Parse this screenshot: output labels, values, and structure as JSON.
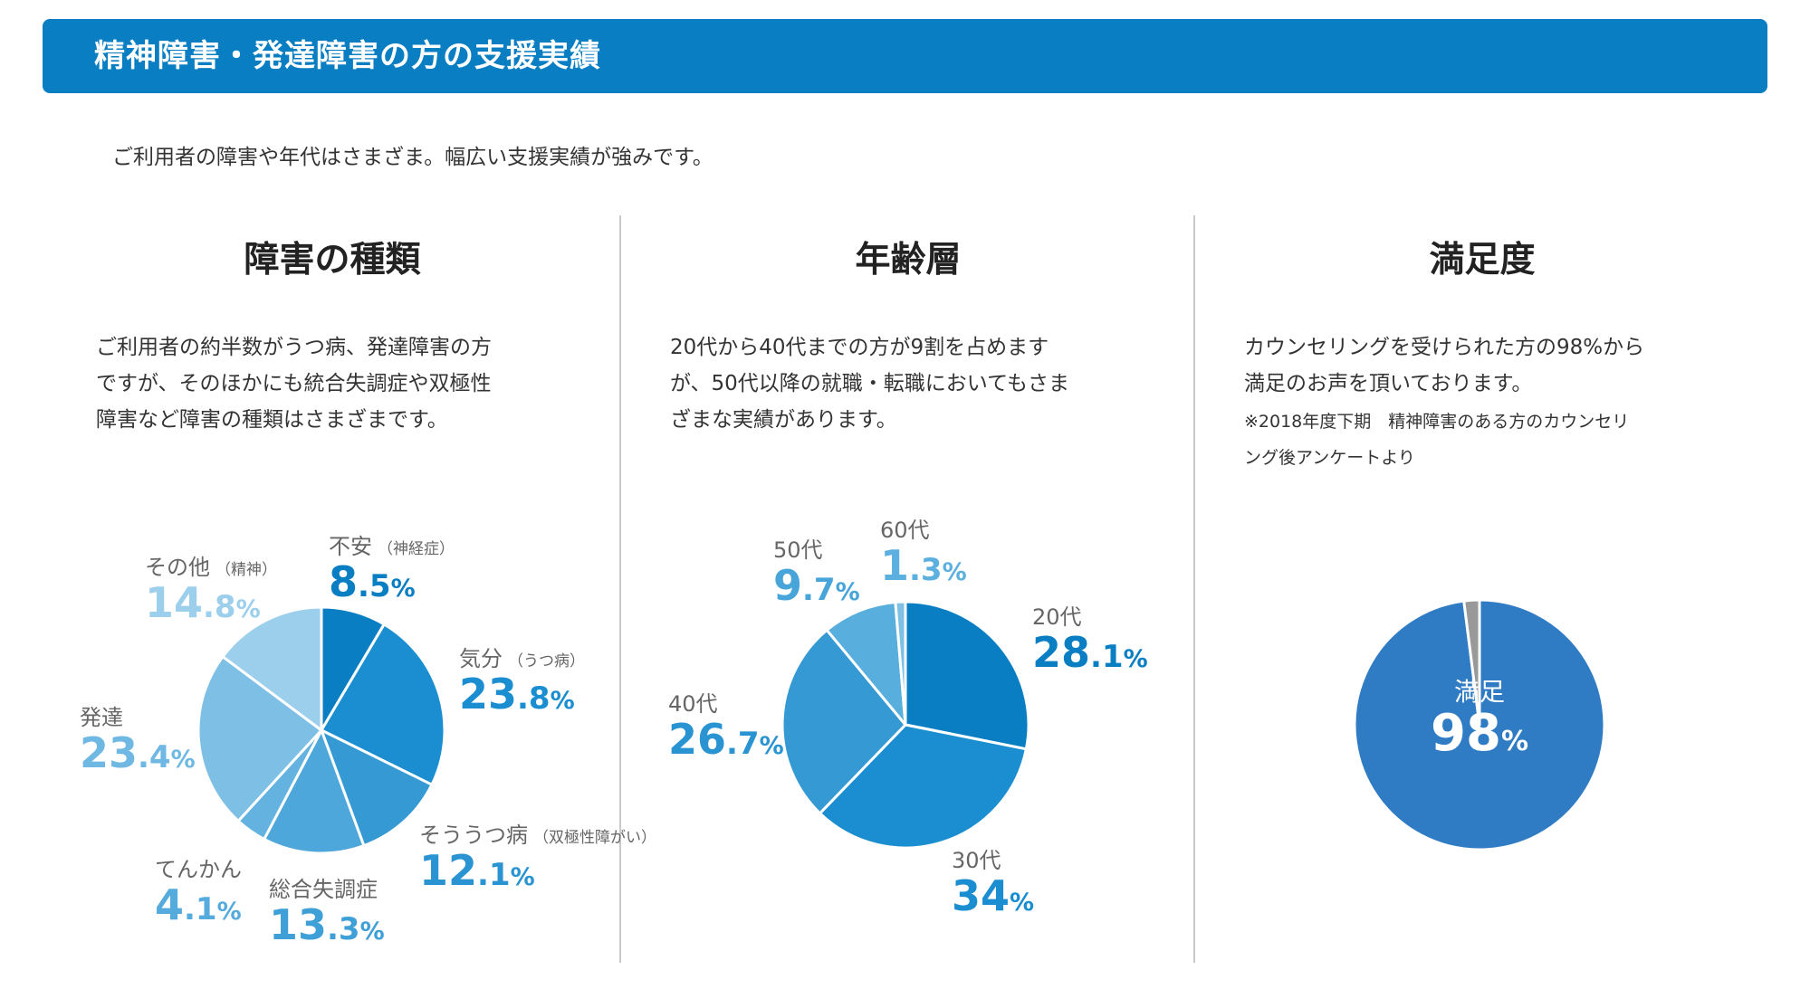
{
  "header": {
    "title": "精神障害・発達障害の方の支援実績"
  },
  "intro": "ご利用者の障害や年代はさまざま。幅広い支援実績が強みです。",
  "panels": [
    {
      "title": "障害の種類",
      "desc": [
        "ご利用者の約半数がうつ病、発達障害の方",
        "ですが、そのほかにも統合失調症や双極性",
        "障害など障害の種類はさまざまです。"
      ]
    },
    {
      "title": "年齢層",
      "desc": [
        "20代から40代までの方が9割を占めます",
        "が、50代以降の就職・転職においてもさま",
        "ざまな実績があります。"
      ]
    },
    {
      "title": "満足度",
      "desc": [
        "カウンセリングを受けられた方の98%から",
        "満足のお声を頂いております。"
      ],
      "note": [
        "※2018年度下期　精神障害のある方のカウンセリ",
        "ング後アンケートより"
      ]
    }
  ],
  "chart_data": [
    {
      "type": "pie",
      "title": "障害の種類",
      "slices": [
        {
          "name": "不安",
          "sub": "（神経症）",
          "value": 8.5,
          "int": "8",
          "dec": ".5",
          "unit": "%",
          "color": "#0a7ec2",
          "label_color": "#0a7ec2"
        },
        {
          "name": "気分",
          "sub": "（うつ病）",
          "value": 23.8,
          "int": "23",
          "dec": ".8",
          "unit": "%",
          "color": "#1a8ed0",
          "label_color": "#1a8ed0"
        },
        {
          "name": "そううつ病",
          "sub": "（双極性障がい）",
          "value": 12.1,
          "int": "12",
          "dec": ".1",
          "unit": "%",
          "color": "#3599d4",
          "label_color": "#2a94d2"
        },
        {
          "name": "総合失調症",
          "sub": "",
          "value": 13.3,
          "int": "13",
          "dec": ".3",
          "unit": "%",
          "color": "#4ea7db",
          "label_color": "#3f9fd7"
        },
        {
          "name": "てんかん",
          "sub": "",
          "value": 4.1,
          "int": "4",
          "dec": ".1",
          "unit": "%",
          "color": "#63b2e0",
          "label_color": "#56abdd"
        },
        {
          "name": "発達",
          "sub": "",
          "value": 23.4,
          "int": "23",
          "dec": ".4",
          "unit": "%",
          "color": "#7dbfe5",
          "label_color": "#6fb8e3"
        },
        {
          "name": "その他",
          "sub": "（精神）",
          "value": 14.8,
          "int": "14",
          "dec": ".8",
          "unit": "%",
          "color": "#9ccfec",
          "label_color": "#9ccfec"
        }
      ]
    },
    {
      "type": "pie",
      "title": "年齢層",
      "slices": [
        {
          "name": "20代",
          "value": 28.1,
          "int": "28",
          "dec": ".1",
          "unit": "%",
          "color": "#0a7ec2",
          "label_color": "#0a7ec2"
        },
        {
          "name": "30代",
          "value": 34,
          "int": "34",
          "dec": "",
          "unit": "%",
          "color": "#1a8ed0",
          "label_color": "#1a8ed0"
        },
        {
          "name": "40代",
          "value": 26.7,
          "int": "26",
          "dec": ".7",
          "unit": "%",
          "color": "#3599d4",
          "label_color": "#2a94d2"
        },
        {
          "name": "50代",
          "value": 9.7,
          "int": "9",
          "dec": ".7",
          "unit": "%",
          "color": "#58aedd",
          "label_color": "#48a5da"
        },
        {
          "name": "60代",
          "value": 1.3,
          "int": "1",
          "dec": ".3",
          "unit": "%",
          "color": "#7fc0e5",
          "label_color": "#5cb0df"
        }
      ]
    },
    {
      "type": "pie",
      "title": "満足度",
      "slices": [
        {
          "name": "満足",
          "value": 98,
          "int": "98",
          "dec": "",
          "unit": "%",
          "color": "#2f7cc4"
        },
        {
          "name": "",
          "value": 2,
          "color": "#999999"
        }
      ]
    }
  ]
}
